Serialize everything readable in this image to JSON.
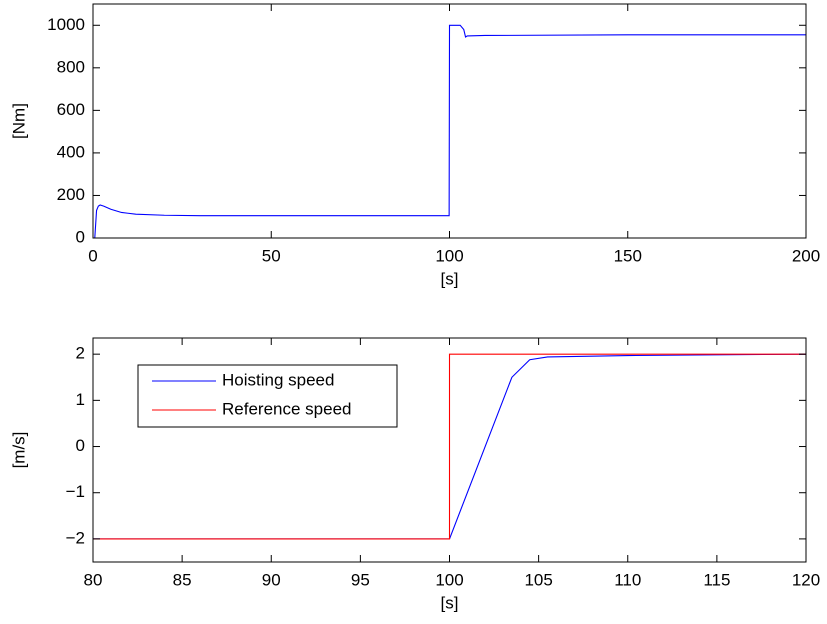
{
  "chart_data": [
    {
      "type": "line",
      "x_label": "[s]",
      "y_label": "[Nm]",
      "xlim": [
        0,
        200
      ],
      "xticks": [
        0,
        50,
        100,
        150,
        200
      ],
      "ylim": [
        0,
        1100
      ],
      "yticks": [
        0,
        200,
        400,
        600,
        800,
        1000
      ],
      "grid": false,
      "series": [
        {
          "color": "#0000ff",
          "x": [
            0,
            0.5,
            1,
            1.5,
            2,
            3,
            5,
            8,
            12,
            20,
            30,
            50,
            99.9,
            100,
            100.2,
            103,
            104,
            104.5,
            105,
            110,
            150,
            200
          ],
          "values": [
            0,
            0,
            130,
            150,
            155,
            150,
            135,
            120,
            112,
            107,
            105,
            105,
            105,
            1000,
            1000,
            1000,
            980,
            945,
            950,
            952,
            955,
            955
          ]
        }
      ]
    },
    {
      "type": "line",
      "x_label": "[s]",
      "y_label": "[m/s]",
      "xlim": [
        80,
        120
      ],
      "xticks": [
        80,
        85,
        90,
        95,
        100,
        105,
        110,
        115,
        120
      ],
      "ylim": [
        -2.5,
        2.35
      ],
      "yticks": [
        {
          "value": -2,
          "label": "−2"
        },
        {
          "value": -1,
          "label": "−1"
        },
        0,
        1,
        2
      ],
      "grid": false,
      "legend": "upper left",
      "series": [
        {
          "name": "Hoisting speed",
          "color": "#0000ff",
          "x": [
            80,
            100,
            102,
            103.5,
            104.5,
            105.5,
            110,
            120
          ],
          "values": [
            -2,
            -2,
            0,
            1.5,
            1.88,
            1.94,
            1.97,
            2
          ]
        },
        {
          "name": "Reference speed",
          "color": "#ff0000",
          "x": [
            80,
            100,
            100,
            120
          ],
          "values": [
            -2,
            -2,
            2,
            2
          ]
        }
      ]
    }
  ]
}
